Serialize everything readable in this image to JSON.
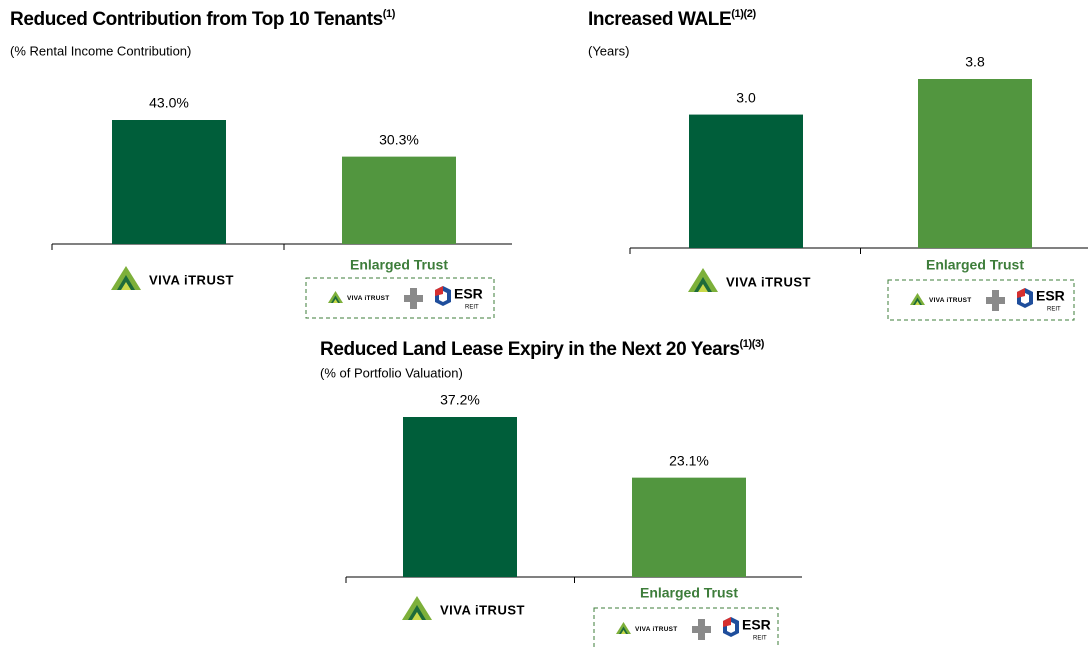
{
  "logos": {
    "viva": "VIVA iTRUST",
    "esr": "ESR",
    "esr_sub": "REIT"
  },
  "chart_data": [
    {
      "type": "bar",
      "title": "Reduced Contribution from Top 10 Tenants",
      "title_superscript": "(1)",
      "subtitle": "(% Rental Income Contribution)",
      "categories": [
        "VIVA iTRUST",
        "Enlarged Trust"
      ],
      "values": [
        43.0,
        30.3
      ],
      "value_labels": [
        "43.0%",
        "30.3%"
      ],
      "colors": [
        "#005e3a",
        "#52963f"
      ]
    },
    {
      "type": "bar",
      "title": "Increased WALE",
      "title_superscript": "(1)(2)",
      "subtitle": "(Years)",
      "categories": [
        "VIVA iTRUST",
        "Enlarged Trust"
      ],
      "values": [
        3.0,
        3.8
      ],
      "value_labels": [
        "3.0",
        "3.8"
      ],
      "colors": [
        "#005e3a",
        "#52963f"
      ]
    },
    {
      "type": "bar",
      "title": "Reduced Land Lease Expiry in the Next 20 Years",
      "title_superscript": "(1)(3)",
      "subtitle": "(% of Portfolio Valuation)",
      "categories": [
        "VIVA iTRUST",
        "Enlarged Trust"
      ],
      "values": [
        37.2,
        23.1
      ],
      "value_labels": [
        "37.2%",
        "23.1%"
      ],
      "colors": [
        "#005e3a",
        "#52963f"
      ]
    }
  ]
}
